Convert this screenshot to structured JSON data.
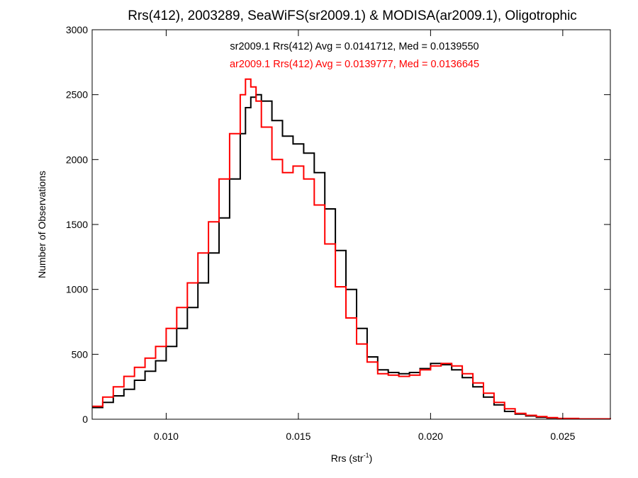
{
  "chart_data": {
    "type": "line",
    "step": true,
    "title": "Rrs(412), 2003289, SeaWiFS(sr2009.1) & MODISA(ar2009.1), Oligotrophic",
    "xlabel_main": "Rrs (str",
    "xlabel_sup": "-1",
    "xlabel_close": ")",
    "ylabel": "Number of Observations",
    "xlim": [
      0.0072,
      0.0268
    ],
    "ylim": [
      0,
      3000
    ],
    "xticks": [
      {
        "value": 0.01,
        "label": "0.010"
      },
      {
        "value": 0.015,
        "label": "0.015"
      },
      {
        "value": 0.02,
        "label": "0.020"
      },
      {
        "value": 0.025,
        "label": "0.025"
      }
    ],
    "yticks": [
      {
        "value": 0,
        "label": "0"
      },
      {
        "value": 500,
        "label": "500"
      },
      {
        "value": 1000,
        "label": "1000"
      },
      {
        "value": 1500,
        "label": "1500"
      },
      {
        "value": 2000,
        "label": "2000"
      },
      {
        "value": 2500,
        "label": "2500"
      },
      {
        "value": 3000,
        "label": "3000"
      }
    ],
    "annotations": [
      {
        "text": "sr2009.1 Rrs(412) Avg = 0.0141712, Med = 0.0139550",
        "color": "#000000"
      },
      {
        "text": "ar2009.1 Rrs(412) Avg = 0.0139777, Med = 0.0136645",
        "color": "#ff0000"
      }
    ],
    "series": [
      {
        "color": "#000000",
        "x": [
          0.0072,
          0.0076,
          0.008,
          0.0084,
          0.0088,
          0.0092,
          0.0096,
          0.01,
          0.0104,
          0.0108,
          0.0112,
          0.0116,
          0.012,
          0.0124,
          0.0128,
          0.013,
          0.0132,
          0.0134,
          0.0136,
          0.014,
          0.0144,
          0.0148,
          0.0152,
          0.0156,
          0.016,
          0.0164,
          0.0168,
          0.0172,
          0.0176,
          0.018,
          0.0184,
          0.0188,
          0.0192,
          0.0196,
          0.02,
          0.0204,
          0.0208,
          0.0212,
          0.0216,
          0.022,
          0.0224,
          0.0228,
          0.0232,
          0.0236,
          0.024,
          0.0244,
          0.0248,
          0.0256,
          0.0268
        ],
        "values": [
          90,
          130,
          180,
          230,
          300,
          370,
          450,
          560,
          700,
          860,
          1050,
          1280,
          1550,
          1850,
          2200,
          2400,
          2480,
          2500,
          2450,
          2300,
          2180,
          2120,
          2050,
          1900,
          1620,
          1300,
          1000,
          700,
          480,
          380,
          360,
          350,
          360,
          390,
          430,
          420,
          380,
          320,
          250,
          170,
          110,
          60,
          40,
          25,
          15,
          10,
          5,
          3,
          0
        ]
      },
      {
        "color": "#ff0000",
        "x": [
          0.0072,
          0.0076,
          0.008,
          0.0084,
          0.0088,
          0.0092,
          0.0096,
          0.01,
          0.0104,
          0.0108,
          0.0112,
          0.0116,
          0.012,
          0.0124,
          0.0128,
          0.013,
          0.0132,
          0.0134,
          0.0136,
          0.014,
          0.0144,
          0.0148,
          0.0152,
          0.0156,
          0.016,
          0.0164,
          0.0168,
          0.0172,
          0.0176,
          0.018,
          0.0184,
          0.0188,
          0.0192,
          0.0196,
          0.02,
          0.0204,
          0.0208,
          0.0212,
          0.0216,
          0.022,
          0.0224,
          0.0228,
          0.0232,
          0.0236,
          0.024,
          0.0244,
          0.0248,
          0.0256,
          0.0268
        ],
        "values": [
          100,
          170,
          250,
          330,
          400,
          470,
          560,
          700,
          860,
          1050,
          1280,
          1520,
          1850,
          2200,
          2500,
          2620,
          2560,
          2450,
          2250,
          2000,
          1900,
          1950,
          1850,
          1650,
          1350,
          1020,
          780,
          580,
          440,
          350,
          340,
          330,
          340,
          380,
          410,
          430,
          410,
          350,
          280,
          200,
          130,
          80,
          45,
          30,
          20,
          12,
          6,
          3,
          0
        ]
      }
    ]
  }
}
